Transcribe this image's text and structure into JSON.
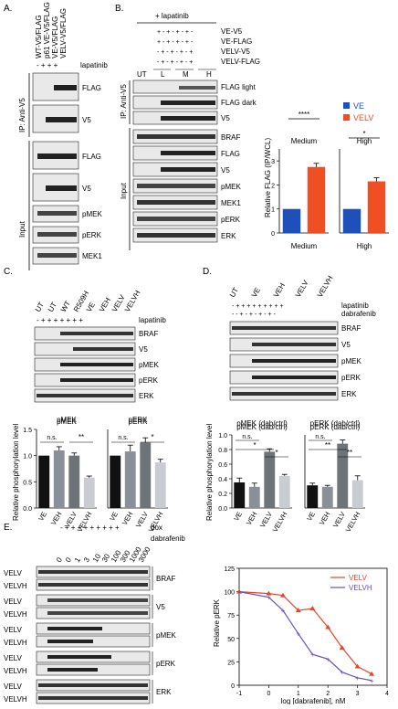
{
  "panels": {
    "A": {
      "letter": "A.",
      "lane_labels": [
        "WT-V5/FLAG",
        "p61 VE-V5/FLAG",
        "VE-V5/FLAG",
        "VELV-V5/FLAG"
      ],
      "treatment": "lapatinib",
      "ip_label": "IP: Anti-V5",
      "input_label": "Input",
      "ip_rows": [
        "FLAG",
        "V5"
      ],
      "input_rows": [
        "FLAG",
        "V5",
        "pMEK",
        "pERK",
        "MEK1"
      ]
    },
    "B": {
      "letter": "B.",
      "treatment": "+ lapatinib",
      "construct_rows": [
        "VE-V5",
        "VE-FLAG",
        "VELV-V5",
        "VELV-FLAG"
      ],
      "lane_groups": [
        "UT",
        "L",
        "M",
        "H"
      ],
      "ip_label": "IP: Anti-V5",
      "input_label": "Input",
      "ip_rows": [
        "FLAG light",
        "FLAG dark",
        "V5"
      ],
      "input_rows": [
        "BRAF",
        "FLAG",
        "V5",
        "pMEK",
        "MEK1",
        "pERK",
        "ERK"
      ],
      "sig_medium": "****",
      "sig_high": "*"
    },
    "C": {
      "letter": "C.",
      "lane_labels": [
        "UT",
        "UT",
        "WT",
        "R509H",
        "VE",
        "VEH",
        "VELV",
        "VELVH"
      ],
      "treatment": "lapatinib",
      "blot_rows": [
        "BRAF",
        "V5",
        "pMEK",
        "pERK",
        "ERK"
      ]
    },
    "D": {
      "letter": "D.",
      "lane_labels": [
        "UT",
        "VE",
        "VEH",
        "VELV",
        "VELVH"
      ],
      "treatments": [
        "lapatinib",
        "dabrafenib"
      ],
      "blot_rows": [
        "BRAF",
        "V5",
        "pMEK",
        "pERK",
        "ERK"
      ]
    },
    "E": {
      "letter": "E.",
      "treatments": [
        "dox",
        "dabrafenib"
      ],
      "doses": [
        "0",
        "0",
        "1",
        "3",
        "10",
        "30",
        "100",
        "300",
        "1000",
        "3000"
      ],
      "line_labels": [
        "VELV",
        "VELVH"
      ],
      "blot_rows": [
        "BRAF",
        "V5",
        "pMEK",
        "pERK",
        "ERK"
      ]
    }
  },
  "chart_data": [
    {
      "id": "B-medium",
      "type": "bar",
      "title": "Medium",
      "ylabel": "Relative FLAG (IP/WCL)",
      "ylim": [
        0,
        3.5
      ],
      "yticks": [
        0,
        1,
        2,
        3
      ],
      "categories": [
        "VE",
        "VELV"
      ],
      "values": [
        1.0,
        2.75
      ],
      "errors": [
        0,
        0.15
      ],
      "legend": [
        "VE",
        "VELV"
      ],
      "colors": {
        "VE": "#1f4fb8",
        "VELV": "#f04e23"
      },
      "significance": "****"
    },
    {
      "id": "B-high",
      "type": "bar",
      "title": "High",
      "ylim": [
        0,
        3.5
      ],
      "categories": [
        "VE",
        "VELV"
      ],
      "values": [
        1.0,
        2.15
      ],
      "errors": [
        0,
        0.15
      ],
      "significance": "*"
    },
    {
      "id": "C-pMEK",
      "type": "bar",
      "title": "pMEK",
      "ylabel": "Relative phosphorylation level",
      "ylim": [
        0,
        1.5
      ],
      "yticks": [
        0,
        0.5,
        1.0,
        1.5
      ],
      "categories": [
        "VE",
        "VEH",
        "VELV",
        "VELVH"
      ],
      "values": [
        1.0,
        1.1,
        1.0,
        0.58
      ],
      "errors": [
        0,
        0.07,
        0.05,
        0.03
      ],
      "annotations": [
        "n.s.",
        "**"
      ]
    },
    {
      "id": "C-pERK",
      "type": "bar",
      "title": "pERK",
      "ylim": [
        0,
        1.5
      ],
      "categories": [
        "VE",
        "VEH",
        "VELV",
        "VELVH"
      ],
      "values": [
        1.0,
        1.08,
        1.25,
        0.87
      ],
      "errors": [
        0,
        0.12,
        0.09,
        0.06
      ],
      "annotations": [
        "n.s.",
        "*"
      ]
    },
    {
      "id": "D-pMEK",
      "type": "bar",
      "title": "pMEK (dab/ctrl)",
      "ylabel": "Relative phosphorylation level",
      "ylim": [
        0,
        1.0
      ],
      "yticks": [
        0,
        0.2,
        0.4,
        0.6,
        0.8,
        1.0
      ],
      "categories": [
        "VE",
        "VEH",
        "VELV",
        "VELVH"
      ],
      "values": [
        0.35,
        0.29,
        0.77,
        0.44
      ],
      "errors": [
        0.06,
        0.05,
        0.04,
        0.02
      ],
      "annotations": [
        "n.s.",
        "*",
        "*"
      ]
    },
    {
      "id": "D-pERK",
      "type": "bar",
      "title": "pERK (dab/ctrl)",
      "ylim": [
        0,
        1.0
      ],
      "categories": [
        "VE",
        "VEH",
        "VELV",
        "VELVH"
      ],
      "values": [
        0.31,
        0.29,
        0.88,
        0.38
      ],
      "errors": [
        0.03,
        0.02,
        0.05,
        0.06
      ],
      "annotations": [
        "n.s.",
        "**",
        "**"
      ]
    },
    {
      "id": "E-dose",
      "type": "line",
      "xlabel": "log [dabrafenib], nM",
      "ylabel": "Relative pERK",
      "xlim": [
        -1,
        4
      ],
      "ylim": [
        0,
        125
      ],
      "xticks": [
        -1,
        0,
        1,
        2,
        3,
        4
      ],
      "yticks": [
        0,
        25,
        50,
        75,
        100,
        125
      ],
      "series": [
        {
          "name": "VELV",
          "color": "#e8452c",
          "points": [
            [
              -1,
              100
            ],
            [
              0,
              98
            ],
            [
              0.48,
              96
            ],
            [
              1,
              80
            ],
            [
              1.48,
              82
            ],
            [
              2,
              62
            ],
            [
              2.48,
              40
            ],
            [
              3,
              20
            ],
            [
              3.48,
              12
            ]
          ]
        },
        {
          "name": "VELVH",
          "color": "#6a4fb5",
          "points": [
            [
              -1,
              100
            ],
            [
              0,
              94
            ],
            [
              0.48,
              80
            ],
            [
              1,
              55
            ],
            [
              1.48,
              33
            ],
            [
              2,
              28
            ],
            [
              2.48,
              14
            ],
            [
              3,
              8
            ],
            [
              3.48,
              5
            ]
          ]
        }
      ]
    }
  ]
}
